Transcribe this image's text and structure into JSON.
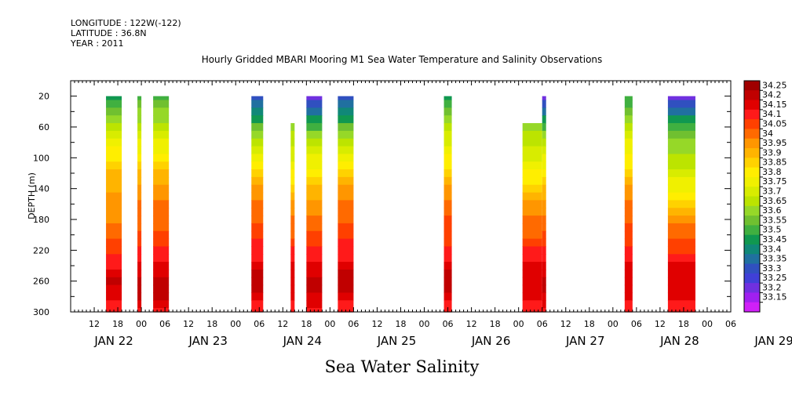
{
  "header": {
    "longitude": "LONGITUDE : 122W(-122)",
    "latitude": "LATITUDE : 36.8N",
    "year": "YEAR : 2011"
  },
  "chart_data": {
    "type": "heatmap",
    "title": "Hourly Gridded MBARI Mooring M1 Sea Water Temperature and Salinity Observations",
    "xlabel": "Sea Water Salinity",
    "ylabel": "DEPTH (m)",
    "x_axis": {
      "unit": "hours since JAN 22 00:00",
      "range": [
        6,
        174
      ],
      "hour_ticks": [
        {
          "x": 12,
          "label": "12"
        },
        {
          "x": 18,
          "label": "18"
        },
        {
          "x": 24,
          "label": "00"
        },
        {
          "x": 30,
          "label": "06"
        },
        {
          "x": 36,
          "label": "12"
        },
        {
          "x": 42,
          "label": "18"
        },
        {
          "x": 48,
          "label": "00"
        },
        {
          "x": 54,
          "label": "06"
        },
        {
          "x": 60,
          "label": "12"
        },
        {
          "x": 66,
          "label": "18"
        },
        {
          "x": 72,
          "label": "00"
        },
        {
          "x": 78,
          "label": "06"
        },
        {
          "x": 84,
          "label": "12"
        },
        {
          "x": 90,
          "label": "18"
        },
        {
          "x": 96,
          "label": "00"
        },
        {
          "x": 102,
          "label": "06"
        },
        {
          "x": 108,
          "label": "12"
        },
        {
          "x": 114,
          "label": "18"
        },
        {
          "x": 120,
          "label": "00"
        },
        {
          "x": 126,
          "label": "06"
        },
        {
          "x": 132,
          "label": "12"
        },
        {
          "x": 138,
          "label": "18"
        },
        {
          "x": 144,
          "label": "00"
        },
        {
          "x": 150,
          "label": "06"
        },
        {
          "x": 156,
          "label": "12"
        },
        {
          "x": 162,
          "label": "18"
        },
        {
          "x": 168,
          "label": "00"
        },
        {
          "x": 174,
          "label": "06"
        }
      ],
      "date_labels": [
        {
          "x": 17,
          "label": "JAN 22"
        },
        {
          "x": 41,
          "label": "JAN 23"
        },
        {
          "x": 65,
          "label": "JAN 24"
        },
        {
          "x": 89,
          "label": "JAN 25"
        },
        {
          "x": 113,
          "label": "JAN 26"
        },
        {
          "x": 137,
          "label": "JAN 27"
        },
        {
          "x": 161,
          "label": "JAN 28"
        },
        {
          "x": 185,
          "label": "JAN 29"
        }
      ]
    },
    "y_axis": {
      "range": [
        0,
        300
      ],
      "inverted": true,
      "ticks": [
        20,
        60,
        100,
        140,
        180,
        220,
        260,
        300
      ]
    },
    "colorbar": {
      "levels": [
        34.25,
        34.2,
        34.15,
        34.1,
        34.05,
        34,
        33.95,
        33.9,
        33.85,
        33.8,
        33.75,
        33.7,
        33.65,
        33.6,
        33.55,
        33.5,
        33.45,
        33.4,
        33.35,
        33.3,
        33.25,
        33.2,
        33.15
      ],
      "colors": [
        "#a00000",
        "#c00000",
        "#e00000",
        "#ff1a1a",
        "#ff4000",
        "#ff6a00",
        "#ff9600",
        "#ffb400",
        "#ffd200",
        "#ffee00",
        "#f0f000",
        "#d8ec00",
        "#bce400",
        "#96d828",
        "#70c030",
        "#40b040",
        "#109850",
        "#108878",
        "#2070a0",
        "#3050c0",
        "#4040d8",
        "#7030e0",
        "#a020f0",
        "#d020f8"
      ]
    },
    "depth_rows": [
      20,
      30,
      40,
      50,
      60,
      70,
      80,
      90,
      100,
      110,
      120,
      130,
      140,
      150,
      160,
      170,
      180,
      190,
      200,
      210,
      220,
      230,
      240,
      250,
      260,
      270,
      280,
      290,
      300
    ],
    "profiles": {
      "A": [
        33.48,
        33.52,
        33.57,
        33.62,
        33.68,
        33.72,
        33.76,
        33.8,
        33.84,
        33.87,
        33.9,
        33.92,
        33.94,
        33.95,
        33.97,
        33.98,
        33.99,
        34.0,
        34.02,
        34.05,
        34.08,
        34.11,
        34.14,
        34.17,
        34.2,
        34.19,
        34.16,
        34.14,
        34.13
      ],
      "B": [
        33.52,
        33.56,
        33.6,
        33.64,
        33.68,
        33.72,
        33.76,
        33.79,
        33.82,
        33.86,
        33.9,
        33.93,
        33.96,
        33.98,
        34.0,
        34.02,
        34.03,
        34.04,
        34.06,
        34.08,
        34.1,
        34.12,
        34.15,
        34.18,
        34.21,
        34.22,
        34.2,
        34.16,
        34.13
      ],
      "C": [
        33.3,
        33.36,
        33.42,
        33.48,
        33.55,
        33.62,
        33.67,
        33.72,
        33.78,
        33.83,
        33.88,
        33.92,
        33.95,
        33.98,
        34.0,
        34.02,
        34.04,
        34.05,
        34.07,
        34.1,
        34.12,
        34.14,
        34.16,
        34.2,
        34.22,
        34.2,
        34.16,
        34.14,
        34.13
      ],
      "D": [
        33.22,
        33.3,
        33.38,
        33.46,
        33.54,
        33.6,
        33.65,
        33.7,
        33.75,
        33.79,
        33.83,
        33.87,
        33.9,
        33.93,
        33.96,
        33.99,
        34.01,
        34.03,
        34.05,
        34.08,
        34.11,
        34.13,
        34.16,
        34.19,
        34.21,
        34.2,
        34.17,
        34.15,
        34.13
      ],
      "E": [
        33.45,
        33.5,
        33.55,
        33.6,
        33.66,
        33.7,
        33.74,
        33.78,
        33.8,
        33.84,
        33.88,
        33.92,
        33.96,
        33.99,
        34.02,
        34.04,
        34.05,
        34.06,
        34.07,
        34.09,
        34.12,
        34.14,
        34.17,
        34.2,
        34.22,
        34.2,
        34.16,
        34.14,
        34.13
      ],
      "F": [
        null,
        null,
        null,
        null,
        33.62,
        33.65,
        33.68,
        33.71,
        33.74,
        33.77,
        33.8,
        33.84,
        33.88,
        33.92,
        33.95,
        33.98,
        34.0,
        34.02,
        34.04,
        34.07,
        34.1,
        34.13,
        34.15,
        34.17,
        34.18,
        34.17,
        34.15,
        34.14,
        34.13
      ],
      "G": [
        33.5,
        33.54,
        33.58,
        33.62,
        33.68,
        33.72,
        33.76,
        33.79,
        33.81,
        33.83,
        33.86,
        33.9,
        33.95,
        33.98,
        34.0,
        34.02,
        34.04,
        34.05,
        34.06,
        34.08,
        34.11,
        34.13,
        34.15,
        34.17,
        34.18,
        34.17,
        34.15,
        34.14,
        34.13
      ],
      "H": [
        33.22,
        33.3,
        33.38,
        33.45,
        33.5,
        33.55,
        33.6,
        33.63,
        33.66,
        33.69,
        33.72,
        33.75,
        33.78,
        33.82,
        33.87,
        33.92,
        33.96,
        34.0,
        34.03,
        34.06,
        34.09,
        34.12,
        34.15,
        34.16,
        34.17,
        34.16,
        34.15,
        34.14,
        34.13
      ]
    },
    "columns": [
      {
        "x_start": 15,
        "x_end": 19,
        "profile": "A"
      },
      {
        "x_start": 23,
        "x_end": 24,
        "profile": "B"
      },
      {
        "x_start": 27,
        "x_end": 31,
        "profile": "B"
      },
      {
        "x_start": 52,
        "x_end": 55,
        "profile": "C"
      },
      {
        "x_start": 62,
        "x_end": 63,
        "profile": "F"
      },
      {
        "x_start": 66,
        "x_end": 70,
        "profile": "D"
      },
      {
        "x_start": 74,
        "x_end": 78,
        "profile": "C"
      },
      {
        "x_start": 101,
        "x_end": 103,
        "profile": "E"
      },
      {
        "x_start": 121,
        "x_end": 126,
        "profile": "F"
      },
      {
        "x_start": 126,
        "x_end": 127,
        "profile": "D"
      },
      {
        "x_start": 147,
        "x_end": 149,
        "profile": "G"
      },
      {
        "x_start": 158,
        "x_end": 165,
        "profile": "H"
      }
    ]
  }
}
